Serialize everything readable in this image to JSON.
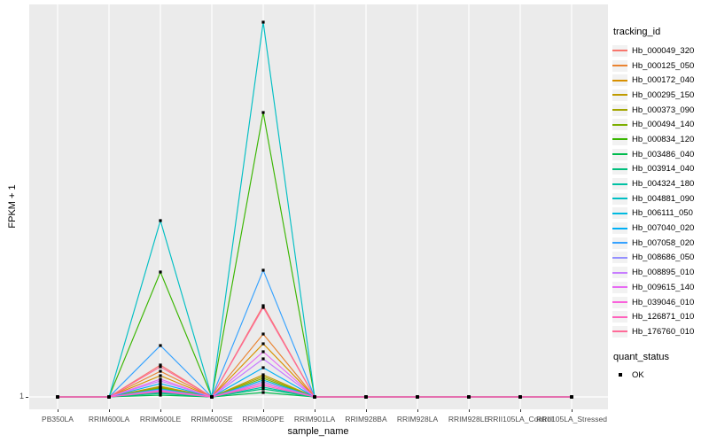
{
  "figure": {
    "background": "#FFFFFF",
    "panel_bg": "#EBEBEB",
    "grid_color": "#FFFFFF",
    "tick_color": "#333333",
    "tick_label_color": "#4D4D4D",
    "marker_color": "#000000",
    "legend_key_bg": "#F2F2F2"
  },
  "chart_data": {
    "type": "line",
    "title": "",
    "xlabel": "sample_name",
    "ylabel": "FPKM + 1",
    "y_ticks": [
      "1"
    ],
    "grid": "white vertical major gridlines per category + horizontal line at y=1",
    "legend_position": "right",
    "legend_title": "tracking_id",
    "marker": "black-square",
    "y_scale_note": "only the tick '1' is labeled; series values are relative estimates read from pixel heights with baseline = 1",
    "categories": [
      "PB350LA",
      "RRIM600LA",
      "RRIM600LE",
      "RRIM600SE",
      "RRIM600PE",
      "RRIM901LA",
      "RRIM928BA",
      "RRIM928LA",
      "RRIM928LE",
      "RRII105LA_Control",
      "RRII105LA_Stressed"
    ],
    "series": [
      {
        "name": "Hb_000049_320",
        "color": "#F8766D",
        "values": [
          1,
          1,
          37,
          1,
          104,
          1,
          1,
          1,
          1,
          1,
          1
        ]
      },
      {
        "name": "Hb_000125_050",
        "color": "#EA8331",
        "values": [
          1,
          1,
          30,
          1,
          72,
          1,
          1,
          1,
          1,
          1,
          1
        ]
      },
      {
        "name": "Hb_000172_040",
        "color": "#D89000",
        "values": [
          1,
          1,
          25,
          1,
          61,
          1,
          1,
          1,
          1,
          1,
          1
        ]
      },
      {
        "name": "Hb_000295_150",
        "color": "#C09B00",
        "values": [
          1,
          1,
          13,
          1,
          26,
          1,
          1,
          1,
          1,
          1,
          1
        ]
      },
      {
        "name": "Hb_000373_090",
        "color": "#A3A500",
        "values": [
          1,
          1,
          12,
          1,
          24,
          1,
          1,
          1,
          1,
          1,
          1
        ]
      },
      {
        "name": "Hb_000494_140",
        "color": "#7CAE00",
        "values": [
          1,
          1,
          11,
          1,
          22,
          1,
          1,
          1,
          1,
          1,
          1
        ]
      },
      {
        "name": "Hb_000834_120",
        "color": "#39B600",
        "values": [
          1,
          1,
          142,
          1,
          322,
          1,
          1,
          1,
          1,
          1,
          1
        ]
      },
      {
        "name": "Hb_003486_040",
        "color": "#00BB4E",
        "values": [
          1,
          1,
          3,
          1,
          6,
          1,
          1,
          1,
          1,
          1,
          1
        ]
      },
      {
        "name": "Hb_003914_040",
        "color": "#00BF7D",
        "values": [
          1,
          1,
          5,
          1,
          10,
          1,
          1,
          1,
          1,
          1,
          1
        ]
      },
      {
        "name": "Hb_004324_180",
        "color": "#00C1A3",
        "values": [
          1,
          1,
          6,
          1,
          12,
          1,
          1,
          1,
          1,
          1,
          1
        ]
      },
      {
        "name": "Hb_004881_090",
        "color": "#00BFC4",
        "values": [
          1,
          1,
          200,
          1,
          424,
          1,
          1,
          1,
          1,
          1,
          1
        ]
      },
      {
        "name": "Hb_006111_050",
        "color": "#00BAE0",
        "values": [
          1,
          1,
          10,
          1,
          20,
          1,
          1,
          1,
          1,
          1,
          1
        ]
      },
      {
        "name": "Hb_007040_020",
        "color": "#00B0F6",
        "values": [
          1,
          1,
          16,
          1,
          34,
          1,
          1,
          1,
          1,
          1,
          1
        ]
      },
      {
        "name": "Hb_007058_020",
        "color": "#35A2FF",
        "values": [
          1,
          1,
          59,
          1,
          144,
          1,
          1,
          1,
          1,
          1,
          1
        ]
      },
      {
        "name": "Hb_008686_050",
        "color": "#9590FF",
        "values": [
          1,
          1,
          9,
          1,
          18,
          1,
          1,
          1,
          1,
          1,
          1
        ]
      },
      {
        "name": "Hb_008895_010",
        "color": "#C77CFF",
        "values": [
          1,
          1,
          19,
          1,
          44,
          1,
          1,
          1,
          1,
          1,
          1
        ]
      },
      {
        "name": "Hb_009615_140",
        "color": "#E76BF3",
        "values": [
          1,
          1,
          21,
          1,
          52,
          1,
          1,
          1,
          1,
          1,
          1
        ]
      },
      {
        "name": "Hb_039046_010",
        "color": "#FA62DB",
        "values": [
          1,
          1,
          8,
          1,
          16,
          1,
          1,
          1,
          1,
          1,
          1
        ]
      },
      {
        "name": "Hb_126871_010",
        "color": "#FF62BC",
        "values": [
          1,
          1,
          7,
          1,
          14,
          1,
          1,
          1,
          1,
          1,
          1
        ]
      },
      {
        "name": "Hb_176760_010",
        "color": "#FF6A98",
        "values": [
          1,
          1,
          35,
          1,
          102,
          1,
          1,
          1,
          1,
          1,
          1
        ]
      }
    ]
  },
  "legend2": {
    "title": "quant_status",
    "items": [
      {
        "label": "OK",
        "symbol": "black-square"
      }
    ]
  }
}
